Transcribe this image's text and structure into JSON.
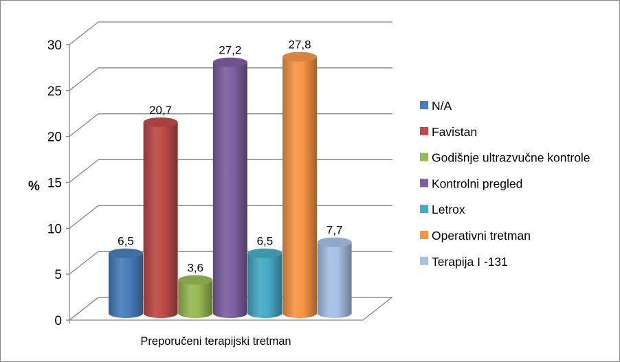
{
  "chart_data": {
    "type": "bar",
    "subtype": "3d-cylinder",
    "title": "",
    "xlabel": "Preporučeni terapijski tretman",
    "ylabel": "%",
    "ylim": [
      0,
      30
    ],
    "yticks": [
      "0",
      "5",
      "10",
      "15",
      "20",
      "25",
      "30"
    ],
    "grid": true,
    "legend_position": "right",
    "series": [
      {
        "name": "N/A",
        "value": 6.5,
        "label": "6,5",
        "color": "#4a7ebb"
      },
      {
        "name": "Favistan",
        "value": 20.7,
        "label": "20,7",
        "color": "#be4b48"
      },
      {
        "name": "Godišnje ultrazvučne kontrole",
        "value": 3.6,
        "label": "3,6",
        "color": "#98b954"
      },
      {
        "name": "Kontrolni pregled",
        "value": 27.2,
        "label": "27,2",
        "color": "#7d60a0"
      },
      {
        "name": "Letrox",
        "value": 6.5,
        "label": "6,5",
        "color": "#46aac5"
      },
      {
        "name": "Operativni tretman",
        "value": 27.8,
        "label": "27,8",
        "color": "#f69546"
      },
      {
        "name": "Terapija I -131",
        "value": 7.7,
        "label": "7,7",
        "color": "#a7c0e5"
      }
    ]
  }
}
